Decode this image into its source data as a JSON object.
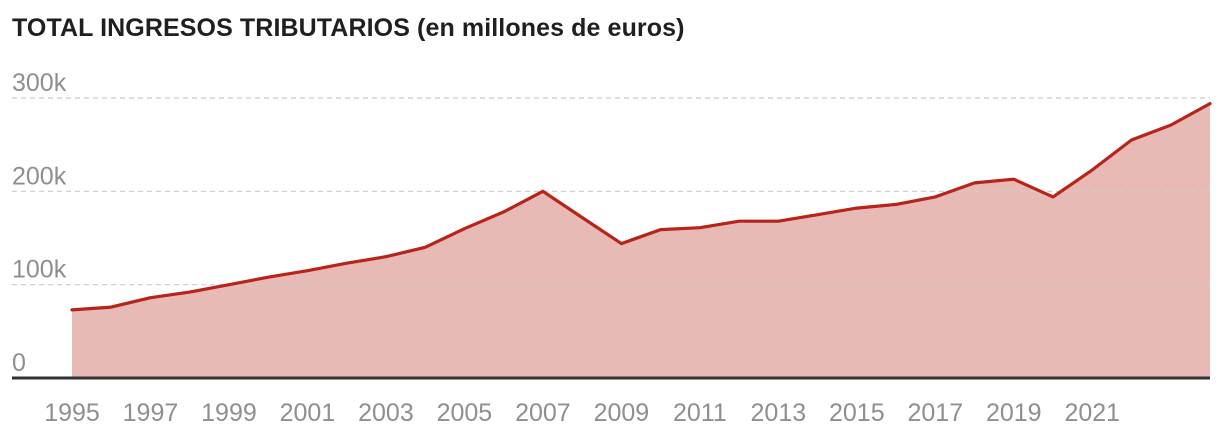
{
  "chart_data": {
    "type": "area",
    "title": "TOTAL INGRESOS TRIBUTARIOS (en millones de euros)",
    "xlabel": "",
    "ylabel": "",
    "ylim": [
      0,
      300000
    ],
    "y_ticks": [
      {
        "value": 0,
        "label": "0"
      },
      {
        "value": 100000,
        "label": "100k"
      },
      {
        "value": 200000,
        "label": "200k"
      },
      {
        "value": 300000,
        "label": "300k"
      }
    ],
    "x_ticks": [
      1995,
      1997,
      1999,
      2001,
      2003,
      2005,
      2007,
      2009,
      2011,
      2013,
      2015,
      2017,
      2019,
      2021
    ],
    "grid": true,
    "colors": {
      "line": "#b8231a",
      "fill": "#e8bab6",
      "grid": "#cccccc",
      "baseline": "#333333"
    },
    "x": [
      1995,
      1996,
      1997,
      1998,
      1999,
      2000,
      2001,
      2002,
      2003,
      2004,
      2005,
      2006,
      2007,
      2008,
      2009,
      2010,
      2011,
      2012,
      2013,
      2014,
      2015,
      2016,
      2017,
      2018,
      2019,
      2020,
      2021,
      2022,
      2023,
      2024
    ],
    "series": [
      {
        "values": [
          73000,
          76000,
          86000,
          92000,
          100000,
          108000,
          115000,
          123000,
          130000,
          140000,
          160000,
          178000,
          200000,
          172000,
          144000,
          159000,
          161000,
          168000,
          168000,
          175000,
          182000,
          186000,
          194000,
          209000,
          213000,
          194000,
          223000,
          255000,
          271000,
          294000
        ]
      }
    ]
  }
}
